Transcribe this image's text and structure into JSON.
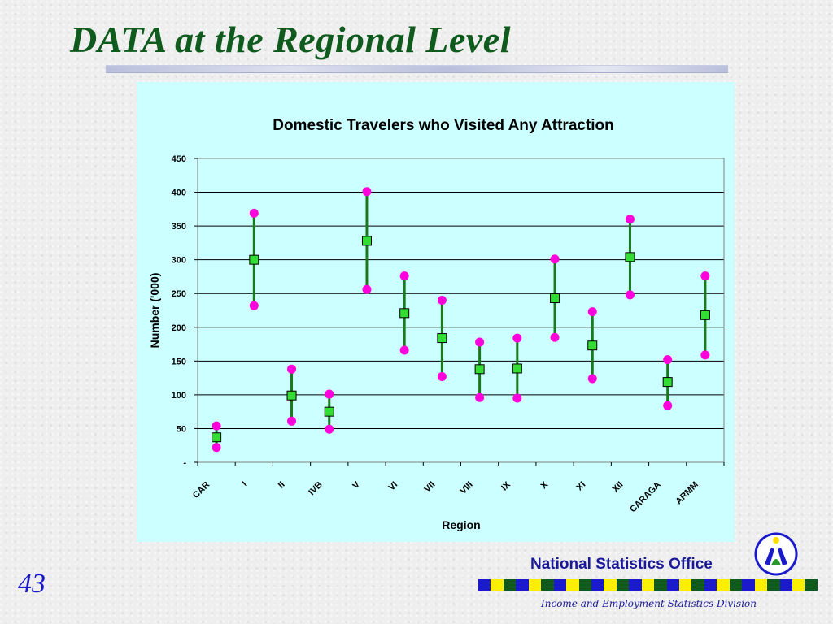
{
  "slide": {
    "title": "DATA at the Regional Level",
    "page_number": "43"
  },
  "footer": {
    "org_name": "National Statistics Office",
    "division": "Income and Employment Statistics Division",
    "strip_colors": [
      "#1a1acc",
      "#ffee00",
      "#0f5b1e"
    ]
  },
  "colors": {
    "panel_background": "#ccffff",
    "range_line": "#1a7a1a",
    "marker_point": "#33dd33",
    "endpoint": "#ff00dd"
  },
  "chart_data": {
    "type": "scatter",
    "title": "Domestic Travelers who Visited Any Attraction",
    "xlabel": "Region",
    "ylabel": "Number ('000)",
    "ylim": [
      0,
      450
    ],
    "yticks": [
      0,
      50,
      100,
      150,
      200,
      250,
      300,
      350,
      400,
      450
    ],
    "ytick_labels": [
      "-",
      "50",
      "100",
      "150",
      "200",
      "250",
      "300",
      "350",
      "400",
      "450"
    ],
    "grid": true,
    "categories": [
      "CAR",
      "I",
      "II",
      "IVB",
      "V",
      "VI",
      "VII",
      "VIII",
      "IX",
      "X",
      "XI",
      "XII",
      "CARAGA",
      "ARMM"
    ],
    "estimate": [
      37,
      300,
      99,
      75,
      328,
      221,
      184,
      138,
      139,
      243,
      173,
      304,
      119,
      218
    ],
    "upper": [
      54,
      369,
      138,
      101,
      401,
      276,
      240,
      178,
      184,
      301,
      223,
      360,
      152,
      276
    ],
    "lower": [
      22,
      232,
      61,
      49,
      256,
      166,
      127,
      96,
      95,
      185,
      124,
      248,
      84,
      159
    ]
  }
}
